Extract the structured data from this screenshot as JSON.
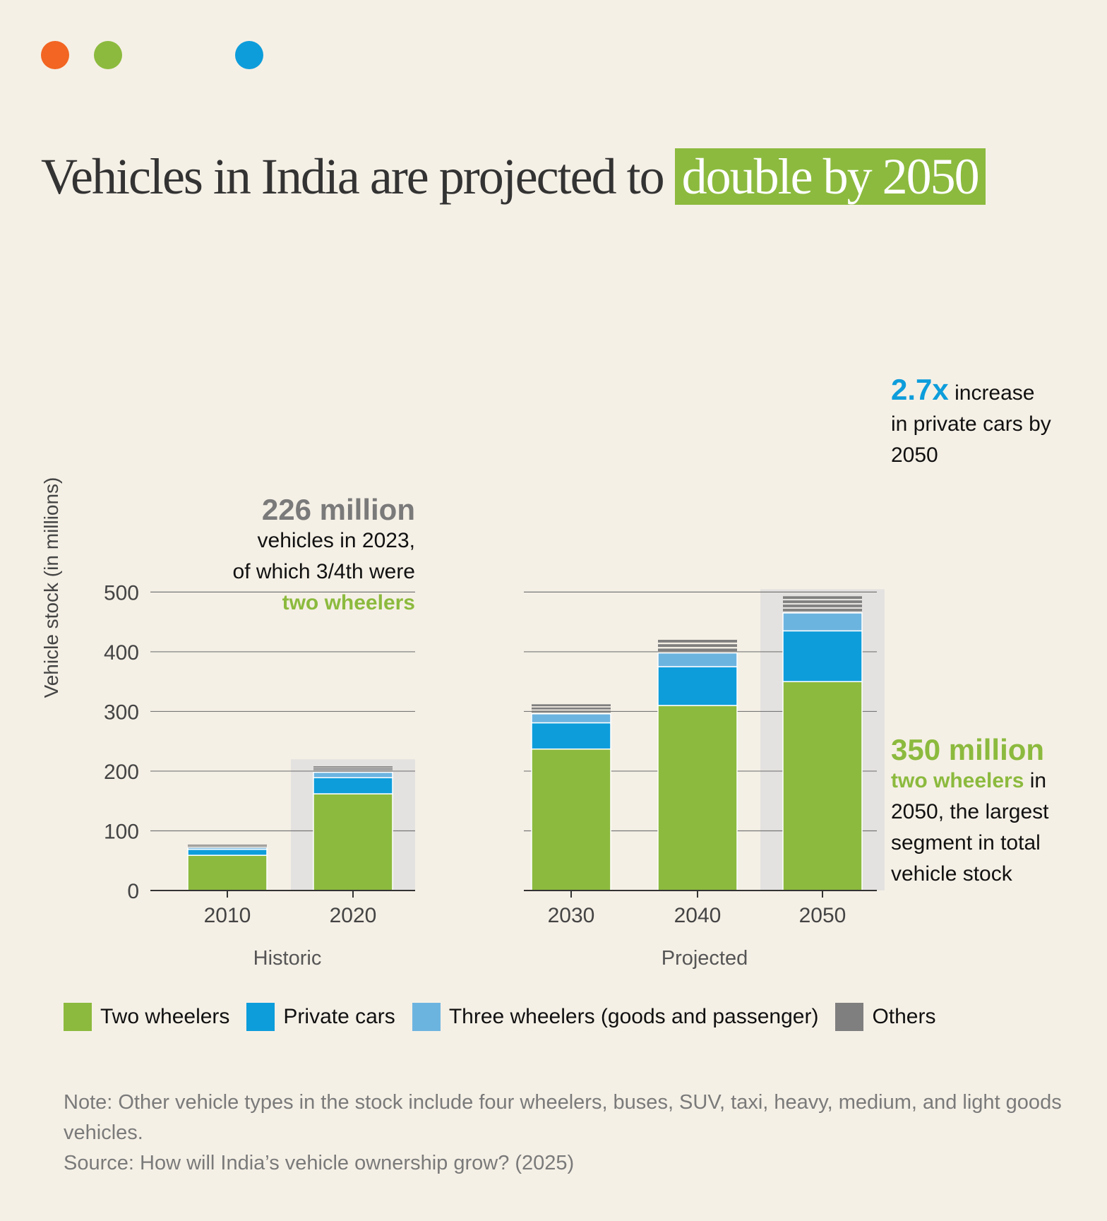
{
  "header": {
    "title_main": "Vehicles in India are projected to",
    "title_highlight": "double by 2050"
  },
  "colors": {
    "two_wheelers": "#8cba3e",
    "private_cars": "#0d9ddb",
    "three_wheelers": "#6cb4e0",
    "others": "#7f7f7f",
    "projection_shade": "#e4e2e0",
    "dot_orange": "#f26522",
    "dot_green": "#8cba3e",
    "dot_blue": "#0d9ddb"
  },
  "chart_data": {
    "type": "bar",
    "stacked": true,
    "ylabel": "Vehicle stock (in millions)",
    "ylim": [
      0,
      500
    ],
    "yticks": [
      0,
      100,
      200,
      300,
      400,
      500
    ],
    "grid": true,
    "groups": [
      {
        "label": "Historic",
        "categories": [
          "2010",
          "2020"
        ]
      },
      {
        "label": "Projected",
        "categories": [
          "2030",
          "2040",
          "2050"
        ]
      }
    ],
    "categories": [
      "2010",
      "2020",
      "2030",
      "2040",
      "2050"
    ],
    "highlighted_categories": [
      "2020",
      "2050"
    ],
    "series": [
      {
        "name": "Two wheelers",
        "values": [
          59,
          162,
          237,
          310,
          350
        ]
      },
      {
        "name": "Private cars",
        "values": [
          10,
          27,
          44,
          65,
          85
        ]
      },
      {
        "name": "Three wheelers (goods and passenger)",
        "values": [
          3,
          9,
          15,
          23,
          30
        ]
      },
      {
        "name": "Others",
        "values": [
          5,
          10,
          16,
          22,
          28
        ]
      }
    ]
  },
  "annotations": {
    "a2023": {
      "big": "226 million",
      "line1": "vehicles in 2023,",
      "line2": "of which 3/4th were",
      "highlight": "two wheelers"
    },
    "cars": {
      "big": "2.7x",
      "text1": "increase",
      "text2": "in private cars by",
      "text3": "2050"
    },
    "two_wheelers": {
      "big": "350 million",
      "highlight": "two wheelers",
      "text1": "in",
      "text2": "2050, the largest",
      "text3": "segment in total",
      "text4": "vehicle stock"
    }
  },
  "legend": [
    {
      "label": "Two wheelers",
      "color": "#8cba3e"
    },
    {
      "label": "Private cars",
      "color": "#0d9ddb"
    },
    {
      "label": "Three wheelers (goods and passenger)",
      "color": "#6cb4e0"
    },
    {
      "label": "Others",
      "color": "#7f7f7f"
    }
  ],
  "footer": {
    "note": "Note: Other vehicle types in the stock include four wheelers, buses, SUV, taxi, heavy, medium, and light goods vehicles.",
    "source": "Source:  How will India’s vehicle ownership grow? (2025)"
  }
}
